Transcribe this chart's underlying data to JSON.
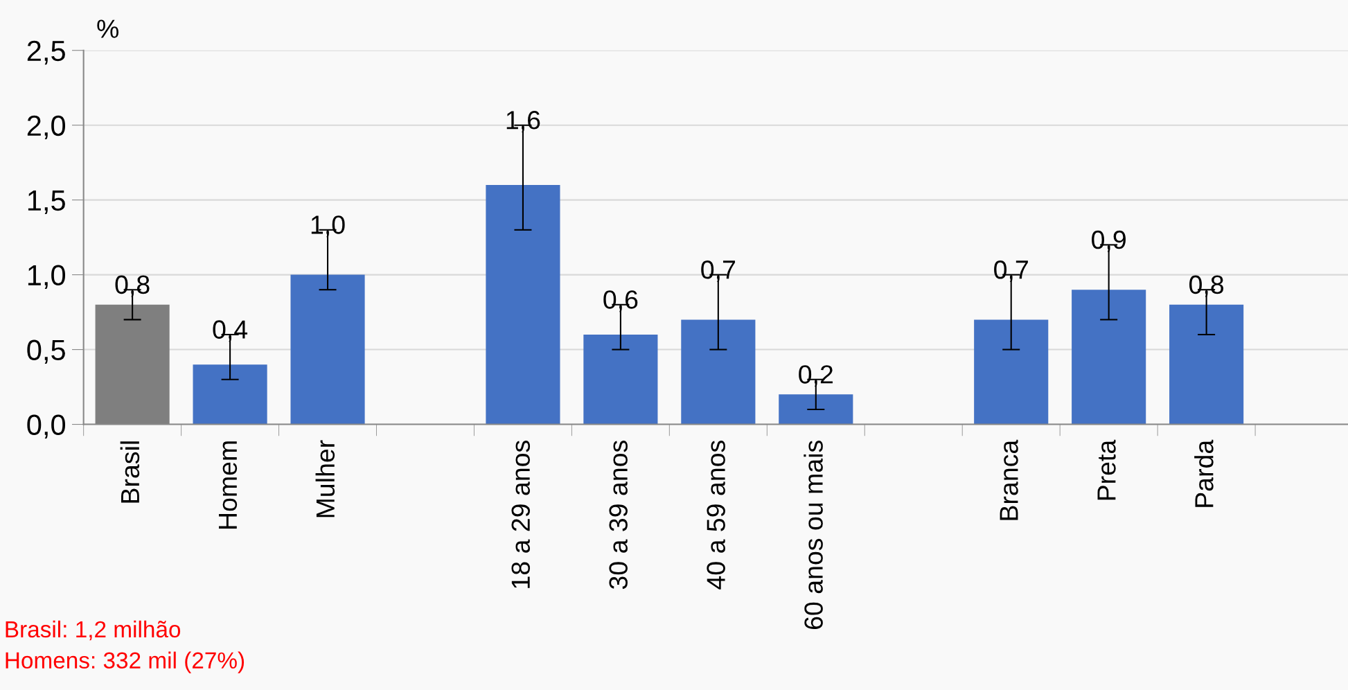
{
  "chart_data": {
    "type": "bar",
    "ylabel": "%",
    "categories": [
      "Brasil",
      "Homem",
      "Mulher",
      null,
      "18 a 29 anos",
      "30 a 39 anos",
      "40 a 59 anos",
      "60 anos ou mais",
      null,
      "Branca",
      "Preta",
      "Parda",
      null
    ],
    "values": [
      0.8,
      0.4,
      1.0,
      null,
      1.6,
      0.6,
      0.7,
      0.2,
      null,
      0.7,
      0.9,
      0.8,
      null
    ],
    "colors": [
      "#7f7f7f",
      "#4472c4",
      "#4472c4",
      null,
      "#4472c4",
      "#4472c4",
      "#4472c4",
      "#4472c4",
      null,
      "#4472c4",
      "#4472c4",
      "#4472c4",
      null
    ],
    "errors": [
      [
        0.7,
        0.9
      ],
      [
        0.3,
        0.6
      ],
      [
        0.9,
        1.3
      ],
      null,
      [
        1.3,
        2.0
      ],
      [
        0.5,
        0.8
      ],
      [
        0.5,
        1.0
      ],
      [
        0.1,
        0.3
      ],
      null,
      [
        0.5,
        1.0
      ],
      [
        0.7,
        1.2
      ],
      [
        0.6,
        0.9
      ],
      null
    ],
    "value_labels": [
      "0,8",
      "0,4",
      "1,0",
      null,
      "1,6",
      "0,6",
      "0,7",
      "0,2",
      null,
      "0,7",
      "0,9",
      "0,8",
      null
    ],
    "ylim": [
      0,
      2.5
    ],
    "yticks": [
      {
        "value": 0,
        "label": "0,0"
      },
      {
        "value": 0.5,
        "label": "0,5"
      },
      {
        "value": 1.0,
        "label": "1,0"
      },
      {
        "value": 1.5,
        "label": "1,5"
      },
      {
        "value": 2.0,
        "label": "2,0"
      },
      {
        "value": 2.5,
        "label": "2,5"
      }
    ],
    "grid": "y",
    "legend": false,
    "annotations": [
      "Brasil: 1,2 milhão",
      "Homens: 332 mil (27%)"
    ]
  }
}
